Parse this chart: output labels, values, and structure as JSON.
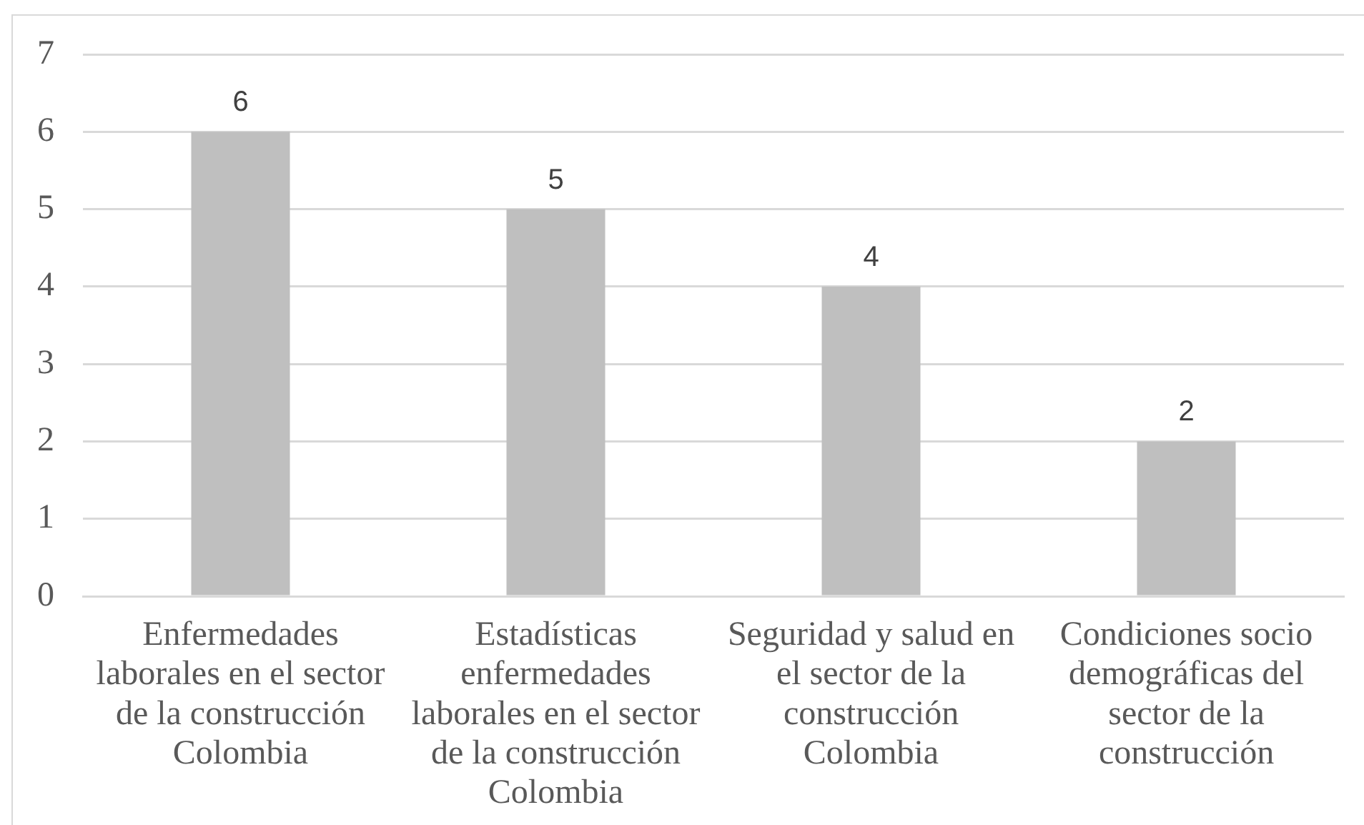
{
  "chart_data": {
    "type": "bar",
    "categories": [
      "Enfermedades laborales en el sector de la construcción Colombia",
      "Estadísticas enfermedades laborales en el sector de la construcción Colombia",
      "Seguridad y salud en el sector de la construcción Colombia",
      "Condiciones socio demográficas del sector de la construcción"
    ],
    "values": [
      6,
      5,
      4,
      2
    ],
    "color": "#bfbfbf",
    "ylim": [
      0,
      7
    ],
    "yticks": [
      0,
      1,
      2,
      3,
      4,
      5,
      6,
      7
    ],
    "grid": "y",
    "data_labels": true
  }
}
